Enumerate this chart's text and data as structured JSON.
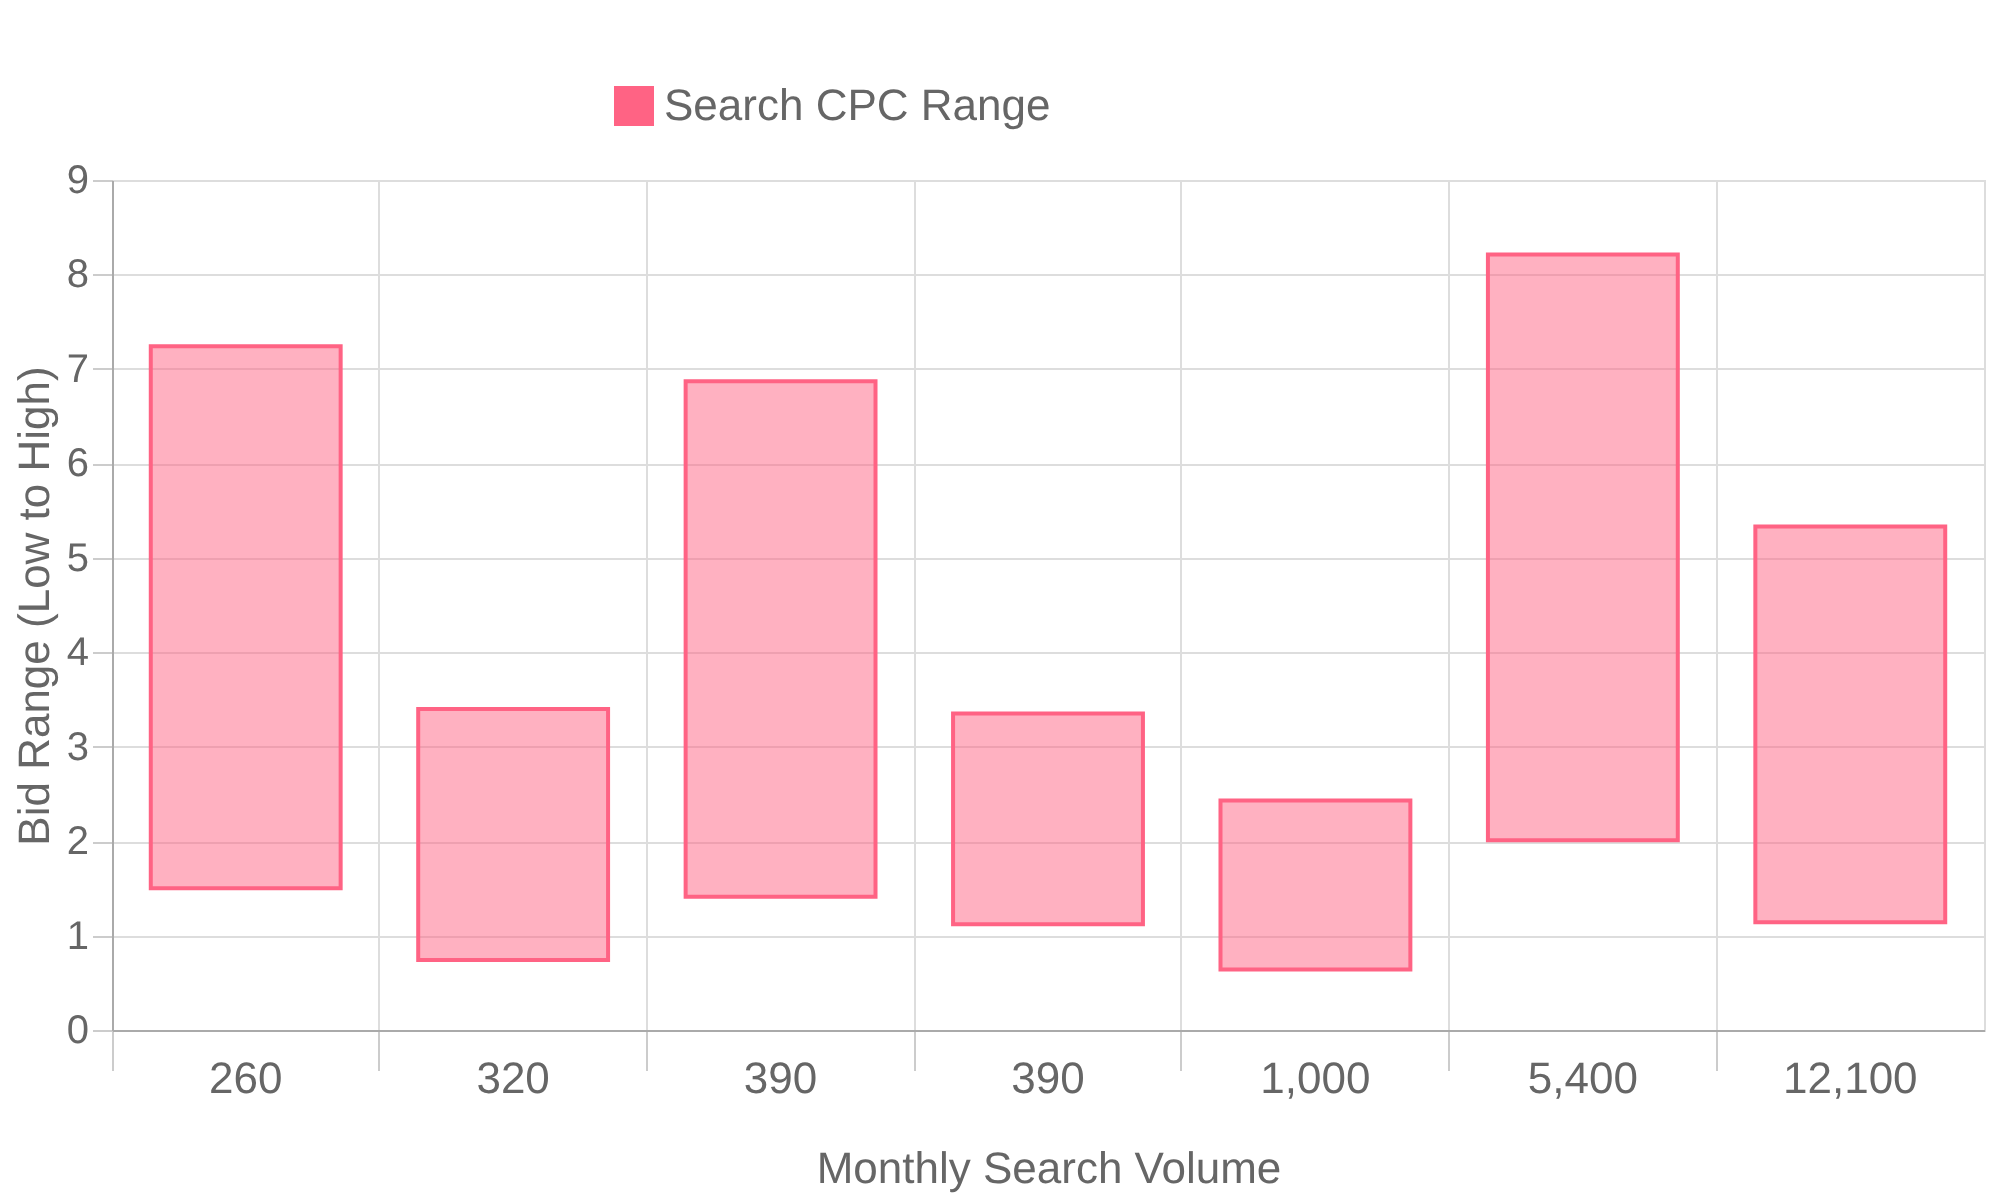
{
  "chart_data": {
    "type": "bar",
    "xlabel": "Monthly Search Volume",
    "ylabel": "Bid Range (Low to High)",
    "categories": [
      "260",
      "320",
      "390",
      "390",
      "1,000",
      "5,400",
      "12,100"
    ],
    "series": [
      {
        "name": "Search CPC Range",
        "color": "#ff6384",
        "values": [
          5.74,
          2.66,
          5.46,
          2.23,
          1.79,
          6.2,
          4.19
        ],
        "base": [
          1.5,
          0.74,
          1.41,
          1.12,
          0.64,
          2.01,
          1.14
        ]
      }
    ],
    "ylim": [
      0,
      9
    ],
    "yticks": [
      0,
      1,
      2,
      3,
      4,
      5,
      6,
      7,
      8,
      9
    ],
    "grid": true,
    "legend": "top"
  }
}
